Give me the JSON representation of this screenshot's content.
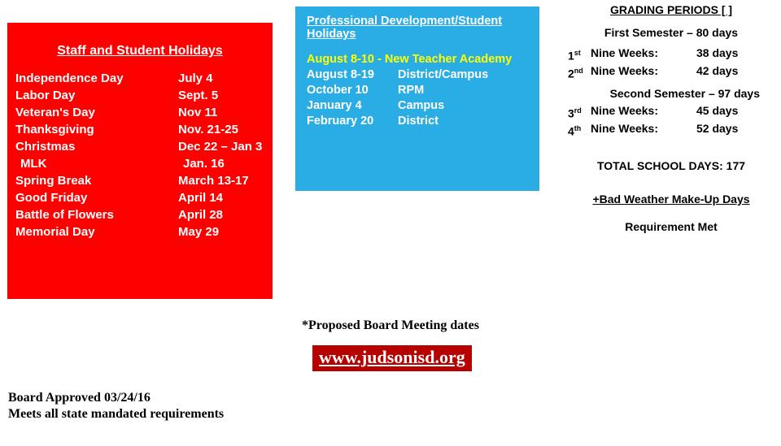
{
  "red_box": {
    "title": "Staff and Student Holidays",
    "title_color": "#ffffff",
    "bg_color": "#ff0000",
    "rows": [
      {
        "name": "Independence Day",
        "date": "July 4",
        "indent": false
      },
      {
        "name": "Labor Day",
        "date": "Sept. 5",
        "indent": false
      },
      {
        "name": "Veteran's Day",
        "date": "Nov 11",
        "indent": false
      },
      {
        "name": "Thanksgiving",
        "date": "Nov. 21-25",
        "indent": false
      },
      {
        "name": "Christmas",
        "date": "Dec 22 – Jan 3",
        "indent": false
      },
      {
        "name": "MLK",
        "date": "Jan. 16",
        "indent": true
      },
      {
        "name": "Spring Break",
        "date": "March 13-17",
        "indent": false
      },
      {
        "name": "Good Friday",
        "date": "April 14",
        "indent": false
      },
      {
        "name": "Battle of Flowers",
        "date": "April 28",
        "indent": false
      },
      {
        "name": "Memorial Day",
        "date": "May 29",
        "indent": false
      }
    ]
  },
  "blue_box": {
    "title": "Professional Development/Student Holidays",
    "bg_color": "#2aade4",
    "academy_color": "#ffff00",
    "rows": [
      {
        "range": "August 8-10",
        "sep": " - ",
        "label": "New Teacher Academy",
        "academy": true
      },
      {
        "range": "August 8-19",
        "sep": "",
        "label": "District/Campus",
        "academy": false
      },
      {
        "range": "October 10",
        "sep": "",
        "label": "RPM",
        "academy": false
      },
      {
        "range": "January 4",
        "sep": "",
        "label": "Campus",
        "academy": false
      },
      {
        "range": "February 20",
        "sep": "",
        "label": "District",
        "academy": false
      }
    ]
  },
  "grading": {
    "title": "GRADING PERIODS [ ]",
    "semesters": [
      {
        "heading": "First Semester – 80 days",
        "periods": [
          {
            "ord": "1",
            "sup": "st",
            "label": "Nine  Weeks:",
            "days": "38 days"
          },
          {
            "ord": "2",
            "sup": "nd",
            "label": "Nine  Weeks:",
            "days": "42 days"
          }
        ]
      },
      {
        "heading": "Second Semester – 97 days",
        "periods": [
          {
            "ord": "3",
            "sup": "rd",
            "label": "Nine  Weeks:",
            "days": "45 days"
          },
          {
            "ord": "4",
            "sup": "th",
            "label": "Nine  Weeks:",
            "days": "52 days"
          }
        ]
      }
    ],
    "total": "TOTAL SCHOOL DAYS:  177",
    "bad_weather": "+Bad Weather Make-Up Days",
    "req_met": "Requirement Met"
  },
  "board_dates": "*Proposed Board Meeting dates",
  "url": "www.judsonisd.org",
  "url_bg": "#b70000",
  "footer": {
    "line1": "Board Approved 03/24/16",
    "line2": "Meets all state mandated requirements"
  }
}
